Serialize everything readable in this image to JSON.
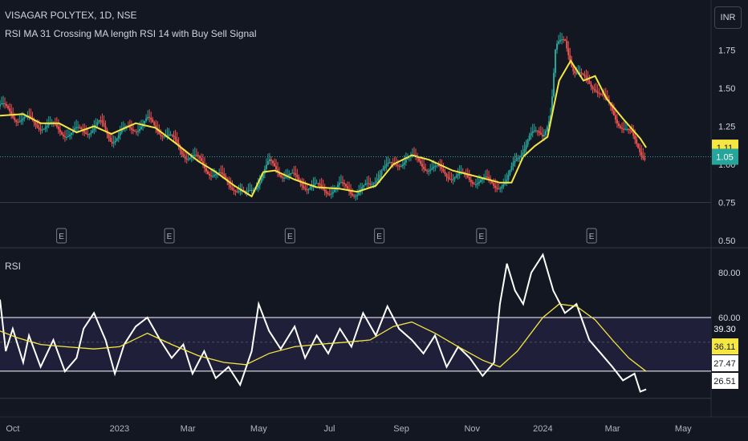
{
  "header": {
    "symbol": "VISAGAR POLYTEX, 1D, NSE",
    "indicator": "RSI MA 31 Crossing MA length RSI 14 with Buy Sell Signal",
    "currency": "INR"
  },
  "rsi_pane": {
    "label": "RSI"
  },
  "colors": {
    "background": "#131722",
    "candle_up": "#26a69a",
    "candle_down": "#ef5350",
    "ma": "#f5e642",
    "rsi": "#ffffff",
    "band_fill": "#1f1f3a",
    "grid": "#363a45"
  },
  "chart_data": [
    {
      "type": "candlestick",
      "title": "VISAGAR POLYTEX, 1D, NSE",
      "ylim": [
        0.5,
        2.0
      ],
      "y_ticks": [
        0.5,
        0.75,
        1.0,
        1.25,
        1.5,
        1.75
      ],
      "y_tick_labels": [
        "0.50",
        "0.75",
        "1.00",
        "1.25",
        "1.50",
        "1.75"
      ],
      "last_price_ma": 1.11,
      "last_price_ma_label": "1.11",
      "last_price": 1.05,
      "last_price_label": "1.05",
      "earnings_markers": [
        "E",
        "E",
        "E",
        "E",
        "E",
        "E"
      ],
      "earnings_dates": [
        "2022-11-12",
        "2023-02-13",
        "2023-05-28",
        "2023-08-13",
        "2023-11-09",
        "2024-02-12"
      ],
      "x_range": [
        "2022-09-20",
        "2024-05-25"
      ],
      "x_tick_labels": [
        "Oct",
        "2023",
        "Mar",
        "May",
        "Jul",
        "Sep",
        "Nov",
        "2024",
        "Mar",
        "May"
      ],
      "x_tick_dates": [
        "2022-10-01",
        "2023-01-01",
        "2023-03-01",
        "2023-05-01",
        "2023-07-01",
        "2023-09-01",
        "2023-11-01",
        "2024-01-01",
        "2024-03-01",
        "2024-05-01"
      ],
      "close_path": [
        [
          "2022-09-20",
          1.38
        ],
        [
          "2022-10-05",
          1.31
        ],
        [
          "2022-10-20",
          1.27
        ],
        [
          "2022-11-05",
          1.24
        ],
        [
          "2022-11-20",
          1.2
        ],
        [
          "2022-12-05",
          1.23
        ],
        [
          "2022-12-15",
          1.26
        ],
        [
          "2022-12-25",
          1.17
        ],
        [
          "2023-01-10",
          1.23
        ],
        [
          "2023-01-25",
          1.28
        ],
        [
          "2023-02-10",
          1.2
        ],
        [
          "2023-02-25",
          1.08
        ],
        [
          "2023-03-10",
          1.02
        ],
        [
          "2023-03-25",
          0.93
        ],
        [
          "2023-04-10",
          0.86
        ],
        [
          "2023-04-20",
          0.78
        ],
        [
          "2023-05-01",
          0.9
        ],
        [
          "2023-05-10",
          1.0
        ],
        [
          "2023-05-25",
          0.93
        ],
        [
          "2023-06-10",
          0.87
        ],
        [
          "2023-06-25",
          0.83
        ],
        [
          "2023-07-10",
          0.85
        ],
        [
          "2023-07-25",
          0.82
        ],
        [
          "2023-08-05",
          0.85
        ],
        [
          "2023-08-15",
          0.98
        ],
        [
          "2023-08-25",
          0.98
        ],
        [
          "2023-09-05",
          1.05
        ],
        [
          "2023-09-20",
          1.0
        ],
        [
          "2023-10-05",
          0.95
        ],
        [
          "2023-10-20",
          0.92
        ],
        [
          "2023-11-05",
          0.9
        ],
        [
          "2023-11-20",
          0.87
        ],
        [
          "2023-12-01",
          0.88
        ],
        [
          "2023-12-10",
          1.05
        ],
        [
          "2023-12-20",
          1.18
        ],
        [
          "2024-01-01",
          1.2
        ],
        [
          "2024-01-08",
          1.35
        ],
        [
          "2024-01-12",
          1.75
        ],
        [
          "2024-01-20",
          1.82
        ],
        [
          "2024-01-28",
          1.62
        ],
        [
          "2024-02-05",
          1.55
        ],
        [
          "2024-02-15",
          1.52
        ],
        [
          "2024-02-25",
          1.4
        ],
        [
          "2024-03-05",
          1.3
        ],
        [
          "2024-03-15",
          1.2
        ],
        [
          "2024-03-25",
          1.1
        ],
        [
          "2024-03-30",
          1.05
        ]
      ],
      "ma_path": [
        [
          "2022-09-20",
          1.32
        ],
        [
          "2022-10-10",
          1.33
        ],
        [
          "2022-10-25",
          1.27
        ],
        [
          "2022-11-10",
          1.27
        ],
        [
          "2022-11-25",
          1.21
        ],
        [
          "2022-12-10",
          1.25
        ],
        [
          "2022-12-25",
          1.2
        ],
        [
          "2023-01-15",
          1.27
        ],
        [
          "2023-02-01",
          1.24
        ],
        [
          "2023-02-20",
          1.13
        ],
        [
          "2023-03-10",
          1.02
        ],
        [
          "2023-03-25",
          0.95
        ],
        [
          "2023-04-10",
          0.86
        ],
        [
          "2023-04-25",
          0.79
        ],
        [
          "2023-05-05",
          0.95
        ],
        [
          "2023-05-15",
          0.96
        ],
        [
          "2023-06-01",
          0.9
        ],
        [
          "2023-06-20",
          0.85
        ],
        [
          "2023-07-10",
          0.84
        ],
        [
          "2023-07-25",
          0.82
        ],
        [
          "2023-08-10",
          0.86
        ],
        [
          "2023-08-25",
          1.0
        ],
        [
          "2023-09-10",
          1.06
        ],
        [
          "2023-09-25",
          1.03
        ],
        [
          "2023-10-15",
          0.96
        ],
        [
          "2023-11-05",
          0.92
        ],
        [
          "2023-11-25",
          0.88
        ],
        [
          "2023-12-05",
          0.88
        ],
        [
          "2023-12-15",
          1.05
        ],
        [
          "2023-12-25",
          1.12
        ],
        [
          "2024-01-05",
          1.18
        ],
        [
          "2024-01-15",
          1.55
        ],
        [
          "2024-01-25",
          1.68
        ],
        [
          "2024-02-05",
          1.55
        ],
        [
          "2024-02-15",
          1.58
        ],
        [
          "2024-02-25",
          1.43
        ],
        [
          "2024-03-10",
          1.3
        ],
        [
          "2024-03-25",
          1.17
        ],
        [
          "2024-03-30",
          1.11
        ]
      ]
    },
    {
      "type": "line",
      "title": "RSI",
      "ylim": [
        20,
        90
      ],
      "y_ticks": [
        60,
        80
      ],
      "y_tick_labels": [
        "60.00",
        "80.00"
      ],
      "upper_band": 60,
      "lower_band": 36.11,
      "mid_line": 49,
      "value_labels": [
        "39.30",
        "36.11",
        "27.47",
        "26.51"
      ],
      "series": [
        {
          "name": "RSI",
          "points": [
            [
              "2022-09-20",
              68
            ],
            [
              "2022-09-25",
              45
            ],
            [
              "2022-10-01",
              55
            ],
            [
              "2022-10-10",
              40
            ],
            [
              "2022-10-15",
              52
            ],
            [
              "2022-10-25",
              38
            ],
            [
              "2022-11-05",
              50
            ],
            [
              "2022-11-15",
              36
            ],
            [
              "2022-11-25",
              42
            ],
            [
              "2022-12-01",
              55
            ],
            [
              "2022-12-10",
              62
            ],
            [
              "2022-12-20",
              50
            ],
            [
              "2022-12-28",
              35
            ],
            [
              "2023-01-05",
              48
            ],
            [
              "2023-01-15",
              56
            ],
            [
              "2023-01-25",
              60
            ],
            [
              "2023-02-05",
              50
            ],
            [
              "2023-02-15",
              42
            ],
            [
              "2023-02-25",
              48
            ],
            [
              "2023-03-05",
              35
            ],
            [
              "2023-03-15",
              45
            ],
            [
              "2023-03-25",
              33
            ],
            [
              "2023-04-05",
              38
            ],
            [
              "2023-04-15",
              30
            ],
            [
              "2023-04-25",
              45
            ],
            [
              "2023-05-01",
              66
            ],
            [
              "2023-05-10",
              54
            ],
            [
              "2023-05-20",
              46
            ],
            [
              "2023-06-01",
              56
            ],
            [
              "2023-06-10",
              42
            ],
            [
              "2023-06-20",
              52
            ],
            [
              "2023-06-30",
              44
            ],
            [
              "2023-07-10",
              55
            ],
            [
              "2023-07-20",
              47
            ],
            [
              "2023-07-30",
              62
            ],
            [
              "2023-08-10",
              52
            ],
            [
              "2023-08-20",
              65
            ],
            [
              "2023-08-30",
              55
            ],
            [
              "2023-09-10",
              50
            ],
            [
              "2023-09-20",
              44
            ],
            [
              "2023-09-30",
              52
            ],
            [
              "2023-10-10",
              38
            ],
            [
              "2023-10-20",
              47
            ],
            [
              "2023-10-30",
              42
            ],
            [
              "2023-11-10",
              34
            ],
            [
              "2023-11-20",
              40
            ],
            [
              "2023-11-25",
              66
            ],
            [
              "2023-12-01",
              84
            ],
            [
              "2023-12-08",
              72
            ],
            [
              "2023-12-15",
              66
            ],
            [
              "2023-12-22",
              80
            ],
            [
              "2024-01-01",
              88
            ],
            [
              "2024-01-10",
              72
            ],
            [
              "2024-01-20",
              62
            ],
            [
              "2024-01-30",
              66
            ],
            [
              "2024-02-10",
              50
            ],
            [
              "2024-02-20",
              44
            ],
            [
              "2024-03-01",
              38
            ],
            [
              "2024-03-10",
              32
            ],
            [
              "2024-03-20",
              35
            ],
            [
              "2024-03-25",
              27
            ],
            [
              "2024-03-30",
              28
            ]
          ]
        },
        {
          "name": "MA",
          "points": [
            [
              "2022-09-20",
              54
            ],
            [
              "2022-10-05",
              51
            ],
            [
              "2022-10-25",
              48
            ],
            [
              "2022-11-15",
              47
            ],
            [
              "2022-12-10",
              46
            ],
            [
              "2023-01-01",
              47
            ],
            [
              "2023-01-25",
              53
            ],
            [
              "2023-02-15",
              48
            ],
            [
              "2023-03-10",
              43
            ],
            [
              "2023-04-01",
              40
            ],
            [
              "2023-04-20",
              39
            ],
            [
              "2023-05-10",
              44
            ],
            [
              "2023-06-01",
              47
            ],
            [
              "2023-06-20",
              48
            ],
            [
              "2023-07-15",
              49
            ],
            [
              "2023-08-05",
              50
            ],
            [
              "2023-08-25",
              56
            ],
            [
              "2023-09-10",
              58
            ],
            [
              "2023-09-30",
              53
            ],
            [
              "2023-10-20",
              47
            ],
            [
              "2023-11-10",
              41
            ],
            [
              "2023-11-25",
              38
            ],
            [
              "2023-12-10",
              45
            ],
            [
              "2024-01-01",
              60
            ],
            [
              "2024-01-15",
              66
            ],
            [
              "2024-01-30",
              65
            ],
            [
              "2024-02-15",
              59
            ],
            [
              "2024-03-01",
              50
            ],
            [
              "2024-03-15",
              42
            ],
            [
              "2024-03-30",
              36
            ]
          ]
        }
      ]
    }
  ]
}
